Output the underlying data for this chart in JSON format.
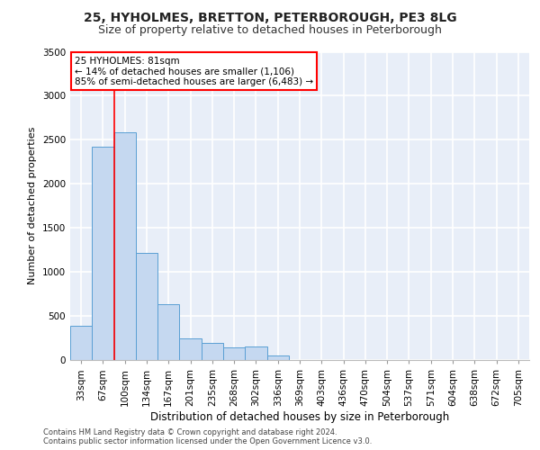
{
  "title1": "25, HYHOLMES, BRETTON, PETERBOROUGH, PE3 8LG",
  "title2": "Size of property relative to detached houses in Peterborough",
  "xlabel": "Distribution of detached houses by size in Peterborough",
  "ylabel": "Number of detached properties",
  "categories": [
    "33sqm",
    "67sqm",
    "100sqm",
    "134sqm",
    "167sqm",
    "201sqm",
    "235sqm",
    "268sqm",
    "302sqm",
    "336sqm",
    "369sqm",
    "403sqm",
    "436sqm",
    "470sqm",
    "504sqm",
    "537sqm",
    "571sqm",
    "604sqm",
    "638sqm",
    "672sqm",
    "705sqm"
  ],
  "values": [
    390,
    2420,
    2590,
    1220,
    630,
    245,
    195,
    145,
    150,
    50,
    0,
    0,
    0,
    0,
    0,
    0,
    0,
    0,
    0,
    0,
    0
  ],
  "bar_color": "#c5d8f0",
  "bar_edge_color": "#5a9fd4",
  "red_line_x": 1.5,
  "annotation_text": "25 HYHOLMES: 81sqm\n← 14% of detached houses are smaller (1,106)\n85% of semi-detached houses are larger (6,483) →",
  "ylim": [
    0,
    3500
  ],
  "yticks": [
    0,
    500,
    1000,
    1500,
    2000,
    2500,
    3000,
    3500
  ],
  "background_color": "#e8eef8",
  "grid_color": "#ffffff",
  "footer": "Contains HM Land Registry data © Crown copyright and database right 2024.\nContains public sector information licensed under the Open Government Licence v3.0.",
  "title1_fontsize": 10,
  "title2_fontsize": 9,
  "xlabel_fontsize": 8.5,
  "ylabel_fontsize": 8,
  "tick_fontsize": 7.5,
  "annot_fontsize": 7.5
}
